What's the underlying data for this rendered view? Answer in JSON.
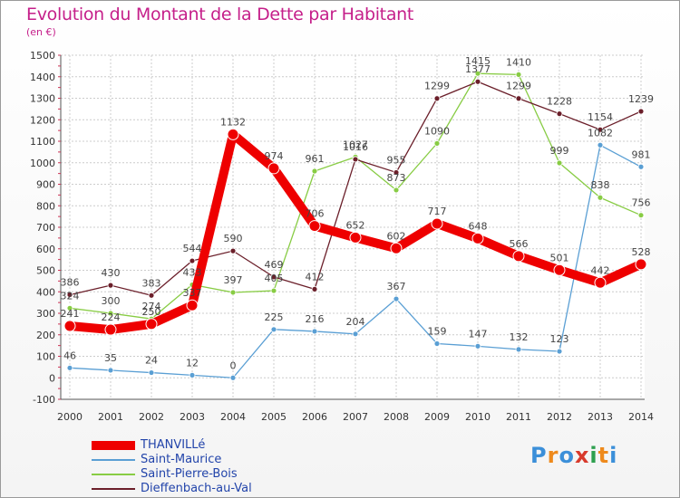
{
  "title": "Evolution du Montant de la Dette par Habitant",
  "unit": "(en €)",
  "brand": "Proxiti",
  "chart_data": {
    "type": "line",
    "title": "Evolution du Montant de la Dette par Habitant",
    "ylabel": "(en €)",
    "ylim": [
      -100,
      1500
    ],
    "ytick_step": 100,
    "grid": true,
    "legend_position": "bottom-left",
    "categories": [
      "2000",
      "2001",
      "2002",
      "2003",
      "2004",
      "2005",
      "2006",
      "2007",
      "2008",
      "2009",
      "2010",
      "2011",
      "2012",
      "2013",
      "2014"
    ],
    "series": [
      {
        "name": "THANVILLé",
        "color": "#ee0000",
        "values": [
          241,
          224,
          250,
          337,
          1132,
          974,
          706,
          652,
          602,
          717,
          648,
          566,
          501,
          442,
          528
        ]
      },
      {
        "name": "Saint-Maurice",
        "color": "#5a9fd4",
        "values": [
          46,
          35,
          24,
          12,
          0,
          225,
          216,
          204,
          367,
          159,
          147,
          132,
          123,
          1082,
          981
        ]
      },
      {
        "name": "Saint-Pierre-Bois",
        "color": "#88cc44",
        "values": [
          324,
          300,
          274,
          433,
          397,
          405,
          961,
          1027,
          873,
          1090,
          1415,
          1410,
          999,
          838,
          756
        ]
      },
      {
        "name": "Dieffenbach-au-Val",
        "color": "#6b1f2a",
        "values": [
          386,
          430,
          383,
          544,
          590,
          469,
          412,
          1016,
          955,
          1299,
          1377,
          1299,
          1228,
          1154,
          1239
        ]
      }
    ],
    "data_labels": [
      [
        "241",
        "224",
        "250",
        "337",
        "1132",
        "974",
        "706",
        "652",
        "602",
        "717",
        "648",
        "566",
        "501",
        "442",
        "528"
      ],
      [
        "46",
        "35",
        "24",
        "12",
        "0",
        "225",
        "216",
        "204",
        "367",
        "159",
        "147",
        "132",
        "123",
        "1082",
        "981"
      ],
      [
        "324",
        "300",
        "274",
        "433",
        "397",
        "405",
        "961",
        "1027",
        "873",
        "1090",
        "1415",
        "1410",
        "999",
        "838",
        "756"
      ],
      [
        "386",
        "430",
        "383",
        "544",
        "590",
        "469",
        "412",
        "1016",
        "955",
        "1299",
        "1377",
        "1299",
        "1228",
        "1154",
        "1239"
      ]
    ]
  }
}
